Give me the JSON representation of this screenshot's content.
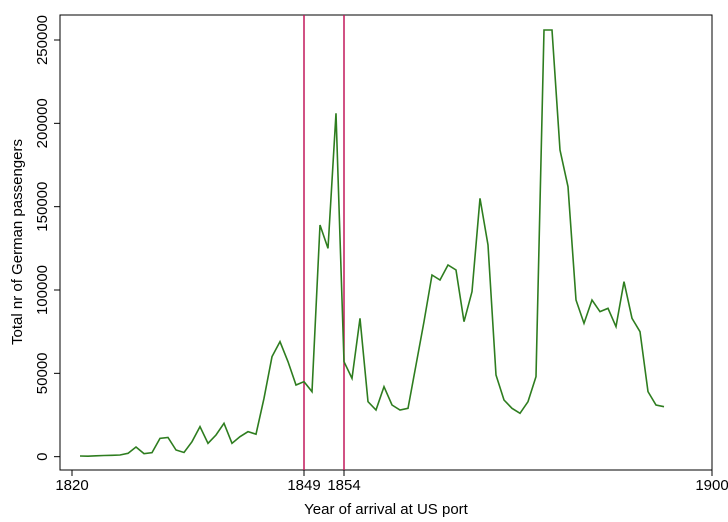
{
  "chart_data": {
    "type": "line",
    "xlabel": "Year of arrival at US port",
    "ylabel": "Total nr of German passengers",
    "x": [
      1821,
      1822,
      1823,
      1824,
      1825,
      1826,
      1827,
      1828,
      1829,
      1830,
      1831,
      1832,
      1833,
      1834,
      1835,
      1836,
      1837,
      1838,
      1839,
      1840,
      1841,
      1842,
      1843,
      1844,
      1845,
      1846,
      1847,
      1848,
      1849,
      1850,
      1851,
      1852,
      1853,
      1854,
      1855,
      1856,
      1857,
      1858,
      1859,
      1860,
      1861,
      1862,
      1863,
      1864,
      1865,
      1866,
      1867,
      1868,
      1869,
      1870,
      1871,
      1872,
      1873,
      1874,
      1875,
      1876,
      1877,
      1878,
      1879,
      1880,
      1881,
      1882,
      1883,
      1884,
      1885,
      1886,
      1887,
      1888,
      1889,
      1890,
      1891,
      1892,
      1893,
      1894
    ],
    "series": [
      {
        "name": "German passengers",
        "color": "#2e7d1f",
        "values": [
          400,
          300,
          500,
          700,
          800,
          1000,
          2000,
          5800,
          1800,
          2400,
          11000,
          11500,
          4000,
          2500,
          9000,
          18000,
          8000,
          13000,
          20000,
          8000,
          12000,
          15000,
          13500,
          35000,
          60000,
          69000,
          57000,
          43000,
          45000,
          39000,
          139000,
          125000,
          206000,
          57000,
          47000,
          83000,
          33000,
          28000,
          42000,
          31000,
          28000,
          29000,
          55000,
          81000,
          109000,
          106000,
          115000,
          112000,
          81000,
          99000,
          155000,
          127000,
          49000,
          34000,
          29000,
          26000,
          33000,
          48000,
          256000,
          256000,
          184000,
          162000,
          94000,
          80000,
          94000,
          87000,
          89000,
          78000,
          105000,
          83000,
          75000,
          39000,
          31000,
          30000
        ]
      }
    ],
    "vlines": [
      {
        "x": 1849,
        "color": "#c2185b"
      },
      {
        "x": 1854,
        "color": "#c2185b"
      }
    ],
    "xlim": [
      1818.5,
      1900
    ],
    "xticks": [
      1820,
      1849,
      1854,
      1900
    ],
    "ylim": [
      -8000,
      265000
    ],
    "yticks": [
      0,
      50000,
      100000,
      150000,
      200000,
      250000
    ]
  }
}
